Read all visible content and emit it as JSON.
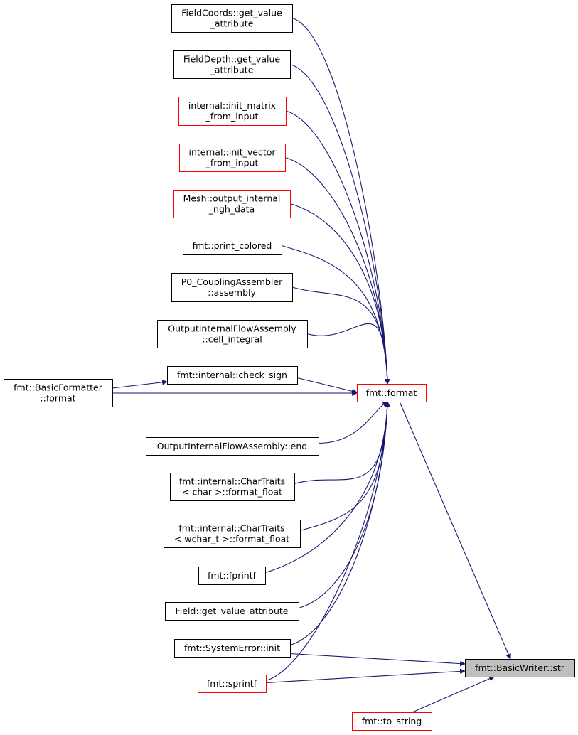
{
  "colors": {
    "edge": "#191970",
    "normal_border": "#000000",
    "linked_border": "#ff0000",
    "focus_fill": "#bfbfbf"
  },
  "nodes": [
    {
      "id": "fieldcoords",
      "lines": [
        "FieldCoords::get_value",
        "_attribute"
      ],
      "style": "normal"
    },
    {
      "id": "fielddepth",
      "lines": [
        "FieldDepth::get_value",
        "_attribute"
      ],
      "style": "normal"
    },
    {
      "id": "init_matrix",
      "lines": [
        "internal::init_matrix",
        "_from_input"
      ],
      "style": "red"
    },
    {
      "id": "init_vector",
      "lines": [
        "internal::init_vector",
        "_from_input"
      ],
      "style": "red"
    },
    {
      "id": "mesh",
      "lines": [
        "Mesh::output_internal",
        "_ngh_data"
      ],
      "style": "red"
    },
    {
      "id": "print_colored",
      "lines": [
        "fmt::print_colored"
      ],
      "style": "normal"
    },
    {
      "id": "p0",
      "lines": [
        "P0_CouplingAssembler",
        "::assembly"
      ],
      "style": "normal"
    },
    {
      "id": "cell_integral",
      "lines": [
        "OutputInternalFlowAssembly",
        "::cell_integral"
      ],
      "style": "normal"
    },
    {
      "id": "check_sign",
      "lines": [
        "fmt::internal::check_sign"
      ],
      "style": "normal"
    },
    {
      "id": "basicformatter",
      "lines": [
        "fmt::BasicFormatter",
        "::format"
      ],
      "style": "normal"
    },
    {
      "id": "format",
      "lines": [
        "fmt::format"
      ],
      "style": "red"
    },
    {
      "id": "oifa_end",
      "lines": [
        "OutputInternalFlowAssembly::end"
      ],
      "style": "normal"
    },
    {
      "id": "chartraits_char",
      "lines": [
        "fmt::internal::CharTraits",
        "< char >::format_float"
      ],
      "style": "normal"
    },
    {
      "id": "chartraits_wchar",
      "lines": [
        "fmt::internal::CharTraits",
        "< wchar_t >::format_float"
      ],
      "style": "normal"
    },
    {
      "id": "fprintf",
      "lines": [
        "fmt::fprintf"
      ],
      "style": "normal"
    },
    {
      "id": "field_gva",
      "lines": [
        "Field::get_value_attribute"
      ],
      "style": "normal"
    },
    {
      "id": "systemerror",
      "lines": [
        "fmt::SystemError::init"
      ],
      "style": "normal"
    },
    {
      "id": "sprintf",
      "lines": [
        "fmt::sprintf"
      ],
      "style": "red"
    },
    {
      "id": "basicwriter_str",
      "lines": [
        "fmt::BasicWriter::str"
      ],
      "style": "focus"
    },
    {
      "id": "to_string",
      "lines": [
        "fmt::to_string"
      ],
      "style": "red"
    }
  ],
  "edges": [
    [
      "fieldcoords",
      "format"
    ],
    [
      "fielddepth",
      "format"
    ],
    [
      "init_matrix",
      "format"
    ],
    [
      "init_vector",
      "format"
    ],
    [
      "mesh",
      "format"
    ],
    [
      "print_colored",
      "format"
    ],
    [
      "p0",
      "format"
    ],
    [
      "cell_integral",
      "format"
    ],
    [
      "check_sign",
      "format"
    ],
    [
      "basicformatter",
      "check_sign"
    ],
    [
      "basicformatter",
      "format"
    ],
    [
      "oifa_end",
      "format"
    ],
    [
      "chartraits_char",
      "format"
    ],
    [
      "chartraits_wchar",
      "format"
    ],
    [
      "fprintf",
      "format"
    ],
    [
      "field_gva",
      "format"
    ],
    [
      "systemerror",
      "format"
    ],
    [
      "sprintf",
      "format"
    ],
    [
      "format",
      "basicwriter_str"
    ],
    [
      "systemerror",
      "basicwriter_str"
    ],
    [
      "sprintf",
      "basicwriter_str"
    ],
    [
      "to_string",
      "basicwriter_str"
    ]
  ]
}
